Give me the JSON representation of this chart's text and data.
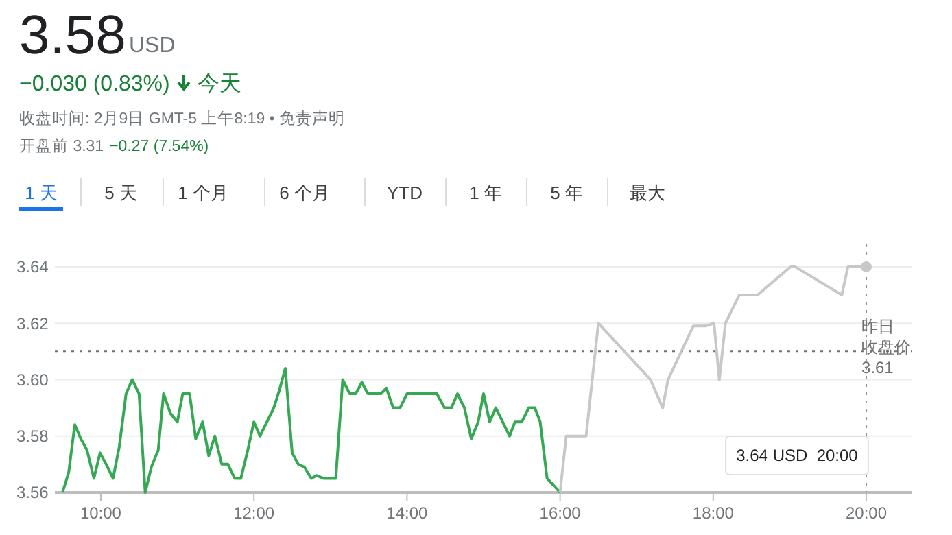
{
  "chart_data": {
    "type": "line",
    "title": "3.58",
    "subtitle": "USD",
    "annotations": [
      "−0.030 (0.83%)",
      "今天",
      "收盘时间: 2月9日 GMT-5 上午8:19 • 免责声明",
      "开盘前 3.31",
      "−0.27 (7.54%)",
      "1 天",
      "5 天",
      "1 个月",
      "6 个月",
      "YTD",
      "1 年",
      "5 年",
      "最大",
      "3.64 USD  20:00"
    ],
    "xlim": [
      9.4,
      20.6
    ],
    "ylim": [
      3.56,
      3.648
    ],
    "xticks": [
      {
        "value": 10,
        "label": "10:00"
      },
      {
        "value": 12,
        "label": "12:00"
      },
      {
        "value": 14,
        "label": "14:00"
      },
      {
        "value": 16,
        "label": "16:00"
      },
      {
        "value": 18,
        "label": "18:00"
      },
      {
        "value": 20,
        "label": "20:00"
      }
    ],
    "yticks": [
      {
        "value": 3.56,
        "label": "3.56"
      },
      {
        "value": 3.58,
        "label": "3.58"
      },
      {
        "value": 3.6,
        "label": "3.60"
      },
      {
        "value": 3.62,
        "label": "3.62"
      },
      {
        "value": 3.64,
        "label": "3.64"
      }
    ],
    "grid": "y",
    "marker": "none",
    "line_style": "solid",
    "ref_lines": [
      {
        "axis": "y",
        "value": 3.61,
        "label": "昨日收盘价3.61",
        "color": "#707070",
        "line_style": "dotted"
      },
      {
        "axis": "x",
        "value": 20,
        "label": null,
        "color": "#909090",
        "line_style": "dotted"
      }
    ],
    "series": [
      {
        "color": "#34a853",
        "x": [
          9.5,
          9.58,
          9.66,
          9.74,
          9.82,
          9.91,
          9.99,
          10.07,
          10.16,
          10.24,
          10.33,
          10.41,
          10.5,
          10.58,
          10.66,
          10.75,
          10.82,
          10.91,
          11,
          11.07,
          11.16,
          11.24,
          11.33,
          11.41,
          11.49,
          11.58,
          11.66,
          11.75,
          11.83,
          11.92,
          12,
          12.08,
          12.17,
          12.26,
          12.33,
          12.41,
          12.5,
          12.58,
          12.66,
          12.75,
          12.82,
          12.91,
          13,
          13.07,
          13.16,
          13.25,
          13.33,
          13.41,
          13.49,
          13.66,
          13.73,
          13.82,
          13.91,
          14,
          14.39,
          14.49,
          14.58,
          14.66,
          14.75,
          14.84,
          14.93,
          15,
          15.08,
          15.16,
          15.34,
          15.41,
          15.5,
          15.59,
          15.67,
          15.74,
          15.83,
          16
        ],
        "values": [
          3.56,
          3.567,
          3.584,
          3.579,
          3.575,
          3.565,
          3.574,
          3.57,
          3.565,
          3.576,
          3.595,
          3.6,
          3.595,
          3.56,
          3.569,
          3.575,
          3.595,
          3.588,
          3.585,
          3.595,
          3.595,
          3.579,
          3.585,
          3.573,
          3.58,
          3.57,
          3.57,
          3.565,
          3.565,
          3.575,
          3.585,
          3.58,
          3.585,
          3.59,
          3.596,
          3.604,
          3.574,
          3.57,
          3.569,
          3.565,
          3.566,
          3.565,
          3.565,
          3.565,
          3.6,
          3.595,
          3.595,
          3.599,
          3.595,
          3.595,
          3.597,
          3.59,
          3.59,
          3.595,
          3.595,
          3.59,
          3.59,
          3.595,
          3.59,
          3.579,
          3.585,
          3.595,
          3.585,
          3.59,
          3.58,
          3.585,
          3.585,
          3.59,
          3.59,
          3.585,
          3.565,
          3.56
        ]
      },
      {
        "color": "#c8c8c8",
        "x": [
          16,
          16.08,
          16.34,
          16.5,
          17.18,
          17.34,
          17.41,
          17.74,
          17.9,
          18.01,
          18.08,
          18.16,
          18.34,
          18.58,
          19.01,
          19.07,
          19.68,
          19.76,
          20
        ],
        "values": [
          3.56,
          3.58,
          3.58,
          3.62,
          3.6,
          3.59,
          3.6,
          3.619,
          3.619,
          3.62,
          3.6,
          3.62,
          3.63,
          3.63,
          3.64,
          3.64,
          3.63,
          3.64,
          3.64
        ]
      },
      {
        "type": "scatter",
        "marker": "circle",
        "color": "#c8c8c8",
        "x": [
          20
        ],
        "values": [
          3.64
        ]
      }
    ]
  }
}
